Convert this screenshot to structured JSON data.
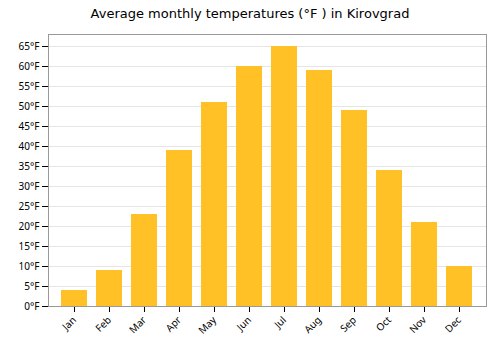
{
  "chart_data": {
    "type": "bar",
    "title": "Average monthly temperatures (°F ) in Kirovgrad",
    "categories": [
      "Jan",
      "Feb",
      "Mar",
      "Apr",
      "May",
      "Jun",
      "Jul",
      "Aug",
      "Sep",
      "Oct",
      "Nov",
      "Dec"
    ],
    "values": [
      4,
      9,
      23,
      39,
      51,
      60,
      65,
      59,
      49,
      34,
      21,
      10
    ],
    "color": "#FFC125",
    "ylim": [
      0,
      68
    ],
    "yticks": [
      {
        "value": 0,
        "label": "0°F"
      },
      {
        "value": 5,
        "label": "5°F"
      },
      {
        "value": 10,
        "label": "10°F"
      },
      {
        "value": 15,
        "label": "15°F"
      },
      {
        "value": 20,
        "label": "20°F"
      },
      {
        "value": 25,
        "label": "25°F"
      },
      {
        "value": 30,
        "label": "30°F"
      },
      {
        "value": 35,
        "label": "35°F"
      },
      {
        "value": 40,
        "label": "40°F"
      },
      {
        "value": 45,
        "label": "45°F"
      },
      {
        "value": 50,
        "label": "50°F"
      },
      {
        "value": 55,
        "label": "55°F"
      },
      {
        "value": 60,
        "label": "60°F"
      },
      {
        "value": 65,
        "label": "65°F"
      }
    ],
    "grid": true
  }
}
